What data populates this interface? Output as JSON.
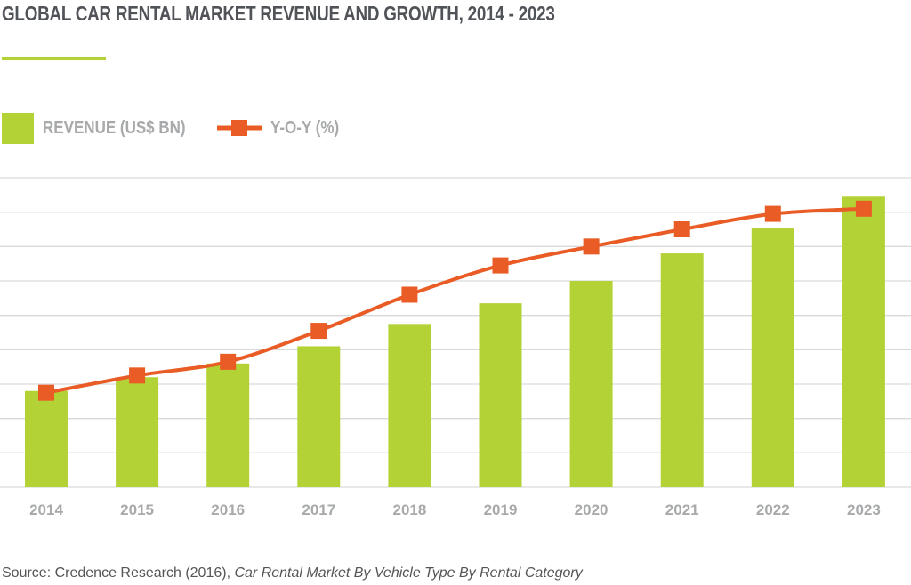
{
  "chart_data": {
    "type": "bar+line",
    "title": "GLOBAL CAR RENTAL MARKET REVENUE AND GROWTH, 2014 - 2023",
    "categories": [
      "2014",
      "2015",
      "2016",
      "2017",
      "2018",
      "2019",
      "2020",
      "2021",
      "2022",
      "2023"
    ],
    "series": [
      {
        "name": "REVENUE (US$ BN)",
        "type": "bar",
        "color": "#b2d235",
        "values": [
          2.8,
          3.2,
          3.6,
          4.1,
          4.75,
          5.35,
          6.0,
          6.8,
          7.55,
          8.45
        ]
      },
      {
        "name": "Y-O-Y (%)",
        "type": "line",
        "color": "#e95c26",
        "values": [
          2.75,
          3.25,
          3.65,
          4.55,
          5.6,
          6.45,
          7.0,
          7.5,
          7.95,
          8.1
        ]
      }
    ],
    "ylim": [
      0,
      9
    ],
    "grid": true,
    "y_tick_labels_shown": false,
    "legend_position": "top-left",
    "grid_color": "#d9d9d9",
    "accent_color": "#b2d235"
  },
  "source": {
    "prefix": "Source: Credence Research (2016), ",
    "title": "Car Rental Market By Vehicle Type By Rental Category"
  }
}
